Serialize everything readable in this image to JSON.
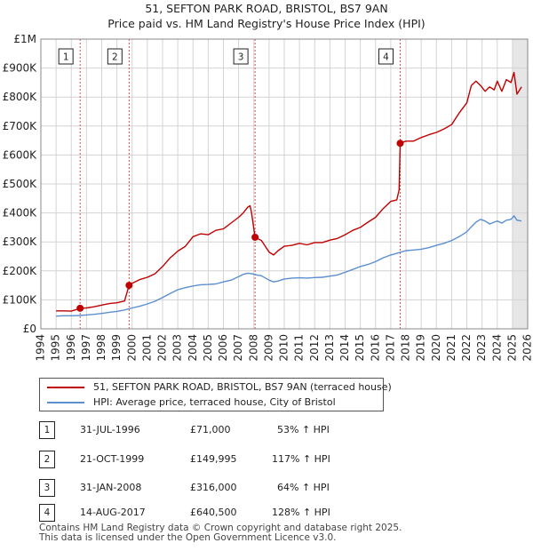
{
  "title_line1": "51, SEFTON PARK ROAD, BRISTOL, BS7 9AN",
  "title_line2": "Price paid vs. HM Land Registry's House Price Index (HPI)",
  "colors": {
    "property": "#c00000",
    "hpi": "#5b8fd0",
    "marker_line": "#d94c4c",
    "grid": "#d3d3d3"
  },
  "chart_data": {
    "type": "line",
    "xlim": [
      1994,
      2026
    ],
    "ylim": [
      0,
      1000000
    ],
    "y_ticks": [
      0,
      100000,
      200000,
      300000,
      400000,
      500000,
      600000,
      700000,
      800000,
      900000,
      1000000
    ],
    "y_tick_labels": [
      "£0",
      "£100K",
      "£200K",
      "£300K",
      "£400K",
      "£500K",
      "£600K",
      "£700K",
      "£800K",
      "£900K",
      "£1M"
    ],
    "x_ticks": [
      1994,
      1995,
      1996,
      1997,
      1998,
      1999,
      2000,
      2001,
      2002,
      2003,
      2004,
      2005,
      2006,
      2007,
      2008,
      2009,
      2010,
      2011,
      2012,
      2013,
      2014,
      2015,
      2016,
      2017,
      2018,
      2019,
      2020,
      2021,
      2022,
      2023,
      2024,
      2025,
      2026
    ],
    "x_tick_labels": [
      "1994",
      "1995",
      "1996",
      "1997",
      "1998",
      "1999",
      "2000",
      "2001",
      "2002",
      "2003",
      "2004",
      "2005",
      "2006",
      "2007",
      "2008",
      "2009",
      "2010",
      "2011",
      "2012",
      "2013",
      "2014",
      "2015",
      "2016",
      "2017",
      "2018",
      "2019",
      "2020",
      "2021",
      "2022",
      "2023",
      "2024",
      "2025",
      "2026"
    ],
    "series": [
      {
        "name": "51, SEFTON PARK ROAD, BRISTOL, BS7 9AN (terraced house)",
        "color": "#c00000",
        "x": [
          1995.0,
          1995.5,
          1996.0,
          1996.58,
          1997.0,
          1997.5,
          1998.0,
          1998.5,
          1999.0,
          1999.5,
          1999.8,
          2000.0,
          2000.5,
          2001.0,
          2001.5,
          2002.0,
          2002.5,
          2003.0,
          2003.5,
          2004.0,
          2004.5,
          2005.0,
          2005.5,
          2006.0,
          2006.5,
          2007.0,
          2007.3,
          2007.6,
          2007.75,
          2007.85,
          2008.08,
          2008.5,
          2009.0,
          2009.3,
          2009.6,
          2010.0,
          2010.5,
          2011.0,
          2011.5,
          2012.0,
          2012.5,
          2013.0,
          2013.5,
          2014.0,
          2014.5,
          2015.0,
          2015.5,
          2016.0,
          2016.5,
          2017.0,
          2017.4,
          2017.55,
          2017.62,
          2018.0,
          2018.5,
          2019.0,
          2019.5,
          2020.0,
          2020.5,
          2021.0,
          2021.5,
          2022.0,
          2022.3,
          2022.6,
          2022.9,
          2023.2,
          2023.5,
          2023.8,
          2024.0,
          2024.3,
          2024.6,
          2024.9,
          2025.1,
          2025.3,
          2025.6
        ],
        "values": [
          62000,
          62000,
          61000,
          71000,
          72000,
          76000,
          82000,
          87000,
          90000,
          96000,
          149995,
          157000,
          170000,
          178000,
          190000,
          215000,
          245000,
          268000,
          285000,
          318000,
          328000,
          325000,
          340000,
          345000,
          365000,
          385000,
          400000,
          420000,
          425000,
          400000,
          316000,
          305000,
          265000,
          255000,
          270000,
          285000,
          288000,
          295000,
          290000,
          298000,
          298000,
          306000,
          312000,
          325000,
          340000,
          350000,
          368000,
          385000,
          415000,
          440000,
          445000,
          480000,
          640500,
          648000,
          648000,
          660000,
          670000,
          678000,
          690000,
          705000,
          745000,
          780000,
          840000,
          855000,
          840000,
          820000,
          835000,
          825000,
          855000,
          820000,
          860000,
          850000,
          885000,
          810000,
          835000
        ]
      },
      {
        "name": "HPI: Average price, terraced house, City of Bristol",
        "color": "#5b8fd0",
        "x": [
          1995.0,
          1995.5,
          1996.0,
          1996.5,
          1997.0,
          1997.5,
          1998.0,
          1998.5,
          1999.0,
          1999.5,
          2000.0,
          2000.5,
          2001.0,
          2001.5,
          2002.0,
          2002.5,
          2003.0,
          2003.5,
          2004.0,
          2004.5,
          2005.0,
          2005.5,
          2006.0,
          2006.5,
          2007.0,
          2007.3,
          2007.6,
          2007.9,
          2008.2,
          2008.5,
          2009.0,
          2009.3,
          2009.6,
          2010.0,
          2010.5,
          2011.0,
          2011.5,
          2012.0,
          2012.5,
          2013.0,
          2013.5,
          2014.0,
          2014.5,
          2015.0,
          2015.5,
          2016.0,
          2016.5,
          2017.0,
          2017.5,
          2018.0,
          2018.5,
          2019.0,
          2019.5,
          2020.0,
          2020.5,
          2021.0,
          2021.5,
          2022.0,
          2022.3,
          2022.6,
          2022.9,
          2023.2,
          2023.5,
          2023.8,
          2024.0,
          2024.3,
          2024.6,
          2024.9,
          2025.1,
          2025.3,
          2025.6
        ],
        "values": [
          44000,
          45000,
          45000,
          46000,
          48000,
          50000,
          53000,
          57000,
          60000,
          65000,
          72000,
          78000,
          86000,
          95000,
          108000,
          122000,
          135000,
          142000,
          148000,
          152000,
          153000,
          155000,
          162000,
          168000,
          180000,
          188000,
          192000,
          190000,
          186000,
          183000,
          168000,
          162000,
          165000,
          172000,
          175000,
          176000,
          175000,
          177000,
          178000,
          182000,
          186000,
          195000,
          205000,
          215000,
          222000,
          232000,
          245000,
          255000,
          262000,
          270000,
          272000,
          275000,
          280000,
          288000,
          295000,
          305000,
          318000,
          335000,
          352000,
          368000,
          378000,
          372000,
          362000,
          368000,
          372000,
          365000,
          375000,
          378000,
          390000,
          375000,
          372000
        ]
      }
    ],
    "sales": [
      {
        "n": "1",
        "x": 1996.58,
        "value": 71000
      },
      {
        "n": "2",
        "x": 1999.8,
        "value": 149995
      },
      {
        "n": "3",
        "x": 2008.08,
        "value": 316000
      },
      {
        "n": "4",
        "x": 2017.62,
        "value": 640500
      }
    ],
    "shaded_from_x": 2025.0
  },
  "legend": {
    "property_label": "51, SEFTON PARK ROAD, BRISTOL, BS7 9AN (terraced house)",
    "hpi_label": "HPI: Average price, terraced house, City of Bristol"
  },
  "sales_table": [
    {
      "n": "1",
      "date": "31-JUL-1996",
      "price": "£71,000",
      "hpi": "53% ↑ HPI"
    },
    {
      "n": "2",
      "date": "21-OCT-1999",
      "price": "£149,995",
      "hpi": "117% ↑ HPI"
    },
    {
      "n": "3",
      "date": "31-JAN-2008",
      "price": "£316,000",
      "hpi": "64% ↑ HPI"
    },
    {
      "n": "4",
      "date": "14-AUG-2017",
      "price": "£640,500",
      "hpi": "128% ↑ HPI"
    }
  ],
  "footer": {
    "line1": "Contains HM Land Registry data © Crown copyright and database right 2025.",
    "line2": "This data is licensed under the Open Government Licence v3.0."
  }
}
